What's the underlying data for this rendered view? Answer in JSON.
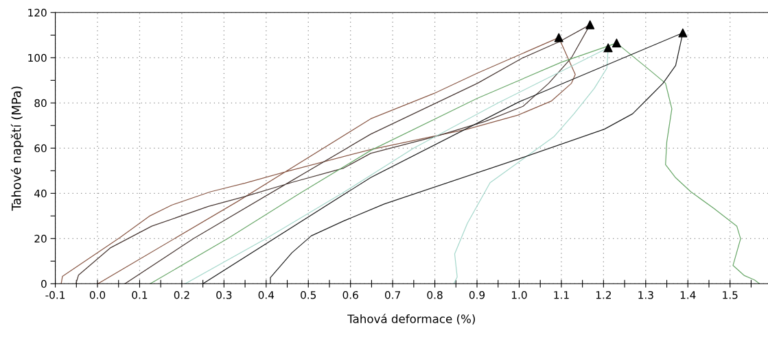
{
  "chart_data": {
    "type": "line",
    "xlabel": "Tahová deformace (%)",
    "ylabel": "Tahové napětí (MPa)",
    "xlim": [
      -0.1,
      1.59
    ],
    "ylim": [
      0,
      120
    ],
    "xticks": [
      {
        "value": -0.1,
        "label": "-0.1"
      },
      {
        "value": -0.05,
        "label": null
      },
      {
        "value": 0.0,
        "label": "0.0"
      },
      {
        "value": 0.05,
        "label": null
      },
      {
        "value": 0.1,
        "label": "0.1"
      },
      {
        "value": 0.15,
        "label": null
      },
      {
        "value": 0.2,
        "label": "0.2"
      },
      {
        "value": 0.25,
        "label": null
      },
      {
        "value": 0.3,
        "label": "0.3"
      },
      {
        "value": 0.35,
        "label": null
      },
      {
        "value": 0.4,
        "label": "0.4"
      },
      {
        "value": 0.45,
        "label": null
      },
      {
        "value": 0.5,
        "label": "0.5"
      },
      {
        "value": 0.55,
        "label": null
      },
      {
        "value": 0.6,
        "label": "0.6"
      },
      {
        "value": 0.65,
        "label": null
      },
      {
        "value": 0.7,
        "label": "0.7"
      },
      {
        "value": 0.75,
        "label": null
      },
      {
        "value": 0.8,
        "label": "0.8"
      },
      {
        "value": 0.85,
        "label": null
      },
      {
        "value": 0.9,
        "label": "0.9"
      },
      {
        "value": 0.95,
        "label": null
      },
      {
        "value": 1.0,
        "label": "1.0"
      },
      {
        "value": 1.05,
        "label": null
      },
      {
        "value": 1.1,
        "label": "1.1"
      },
      {
        "value": 1.15,
        "label": null
      },
      {
        "value": 1.2,
        "label": "1.2"
      },
      {
        "value": 1.25,
        "label": null
      },
      {
        "value": 1.3,
        "label": "1.3"
      },
      {
        "value": 1.35,
        "label": null
      },
      {
        "value": 1.4,
        "label": "1.4"
      },
      {
        "value": 1.45,
        "label": null
      },
      {
        "value": 1.5,
        "label": "1.5"
      },
      {
        "value": 1.55,
        "label": null
      }
    ],
    "yticks": [
      0,
      {
        "value": 10,
        "label": null
      },
      20,
      {
        "value": 30,
        "label": null
      },
      40,
      {
        "value": 50,
        "label": null
      },
      60,
      {
        "value": 70,
        "label": null
      },
      80,
      {
        "value": 90,
        "label": null
      },
      100,
      {
        "value": 110,
        "label": null
      },
      120
    ],
    "grid": true,
    "line_style": "solid",
    "legend": false,
    "series": [
      {
        "color": "#8b5a48",
        "x": [
          0.001,
          0.333,
          0.648,
          0.798,
          0.901,
          1.094,
          1.133,
          1.124,
          1.076,
          0.997,
          0.877,
          0.648,
          0.455,
          0.35,
          0.268,
          0.176,
          0.123,
          0.053,
          -0.083,
          -0.086
        ],
        "values": [
          0,
          36.5,
          73,
          84.2,
          93.2,
          108.9,
          92.6,
          88.7,
          80.8,
          74.6,
          68.4,
          59.4,
          50,
          44.5,
          40.7,
          34.8,
          29.9,
          20.4,
          3.3,
          0
        ]
      },
      {
        "color": "#4a3a36",
        "x": [
          0.065,
          0.228,
          0.466,
          0.648,
          0.901,
          1.009,
          1.094,
          1.168,
          1.124,
          1.07,
          1.009,
          0.919,
          0.798,
          0.648,
          0.583,
          0.466,
          0.35,
          0.263,
          0.129,
          0.03,
          -0.045,
          -0.051
        ],
        "values": [
          0,
          20,
          46.2,
          66.2,
          88.7,
          100,
          107,
          114.6,
          100,
          88.7,
          78.5,
          71.8,
          65,
          57.7,
          51.1,
          45.1,
          38.6,
          34.2,
          25.5,
          15.8,
          3.8,
          0
        ]
      },
      {
        "color": "#6aa86a",
        "x": [
          0.125,
          0.309,
          0.48,
          0.648,
          0.9,
          1.1,
          1.231,
          1.311,
          1.347,
          1.362,
          1.35,
          1.347,
          1.371,
          1.407,
          1.461,
          1.516,
          1.525,
          1.507,
          1.534,
          1.558,
          1.57
        ],
        "values": [
          0,
          20,
          40,
          59,
          82,
          98,
          106.5,
          94.3,
          88.7,
          77.4,
          62.8,
          52.7,
          46.9,
          40.7,
          33.4,
          25.5,
          19.9,
          8.1,
          3.6,
          1.7,
          0
        ]
      },
      {
        "color": "#a6d8cc",
        "x": [
          0.208,
          0.4,
          0.58,
          0.75,
          0.95,
          1.211,
          1.208,
          1.178,
          1.13,
          1.082,
          0.931,
          0.877,
          0.847,
          0.853,
          0.845
        ],
        "values": [
          0,
          20,
          40,
          60,
          80,
          104.4,
          95.4,
          86.4,
          75.2,
          65,
          44.7,
          26.7,
          13.2,
          3,
          0
        ]
      },
      {
        "color": "#222222",
        "x": [
          0.25,
          0.648,
          1.0,
          1.388,
          1.371,
          1.341,
          1.305,
          1.269,
          1.202,
          1.009,
          0.68,
          0.583,
          0.507,
          0.461,
          0.41,
          0.41
        ],
        "values": [
          0,
          47,
          80.5,
          111,
          96.6,
          88.7,
          81.9,
          75.2,
          68.4,
          55.9,
          35.3,
          27.7,
          21.2,
          13.7,
          2.7,
          0
        ]
      },
      {
        "type": "scatter",
        "marker": "triangle",
        "color": "#000000",
        "x": [
          1.094,
          1.168,
          1.211,
          1.231,
          1.388
        ],
        "values": [
          108.9,
          114.6,
          104.4,
          106.5,
          111
        ]
      }
    ]
  }
}
